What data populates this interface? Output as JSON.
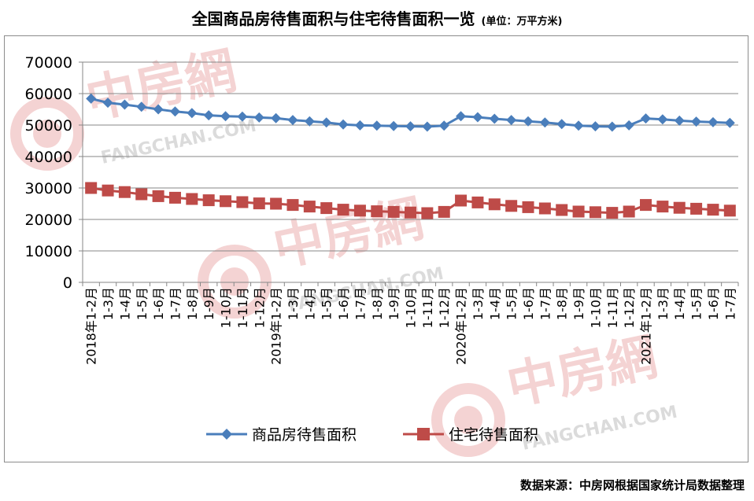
{
  "title": "全国商品房待售面积与住宅待售面积一览",
  "unit": "(单位：万平方米)",
  "source": "数据来源：中房网根据国家统计局数据整理",
  "watermark": {
    "cn": "中房網",
    "en": "FANGCHAN.COM"
  },
  "colors": {
    "series1": "#4a7ebb",
    "series2": "#be4b48",
    "grid": "#878787",
    "watermark": "#e8a0a0"
  },
  "chart_data": {
    "type": "line",
    "ylim": [
      0,
      70000
    ],
    "yticks": [
      0,
      10000,
      20000,
      30000,
      40000,
      50000,
      60000,
      70000
    ],
    "grid": true,
    "legend": "bottom",
    "categories": [
      "2018年1-2月",
      "1-3月",
      "1-4月",
      "1-5月",
      "1-6月",
      "1-7月",
      "1-8月",
      "1-9月",
      "1-10月",
      "1-11月",
      "1-12月",
      "2019年1-2月",
      "1-3月",
      "1-4月",
      "1-5月",
      "1-6月",
      "1-7月",
      "1-8月",
      "1-9月",
      "1-10月",
      "1-11月",
      "1-12月",
      "2020年1-2月",
      "1-3月",
      "1-4月",
      "1-5月",
      "1-6月",
      "1-7月",
      "1-8月",
      "1-9月",
      "1-10月",
      "1-11月",
      "1-12月",
      "2021年1-2月",
      "1-3月",
      "1-4月",
      "1-5月",
      "1-6月",
      "1-7月"
    ],
    "series": [
      {
        "name": "商品房待售面积",
        "marker": "diamond",
        "values": [
          58400,
          57100,
          56500,
          55800,
          55000,
          54300,
          53800,
          53100,
          52800,
          52700,
          52400,
          52200,
          51600,
          51200,
          50800,
          50200,
          49900,
          49800,
          49700,
          49600,
          49500,
          49800,
          52800,
          52500,
          52000,
          51600,
          51200,
          50800,
          50300,
          49800,
          49600,
          49500,
          49900,
          52100,
          51800,
          51400,
          51100,
          50900,
          50700
        ]
      },
      {
        "name": "住宅待售面积",
        "marker": "square",
        "values": [
          30000,
          29200,
          28700,
          28000,
          27400,
          26900,
          26500,
          26100,
          25800,
          25500,
          25100,
          25000,
          24600,
          24100,
          23600,
          23100,
          22800,
          22600,
          22400,
          22200,
          22000,
          22400,
          26000,
          25400,
          24800,
          24300,
          23900,
          23500,
          23000,
          22500,
          22300,
          22100,
          22500,
          24600,
          24100,
          23700,
          23400,
          23100,
          22800
        ]
      }
    ]
  }
}
